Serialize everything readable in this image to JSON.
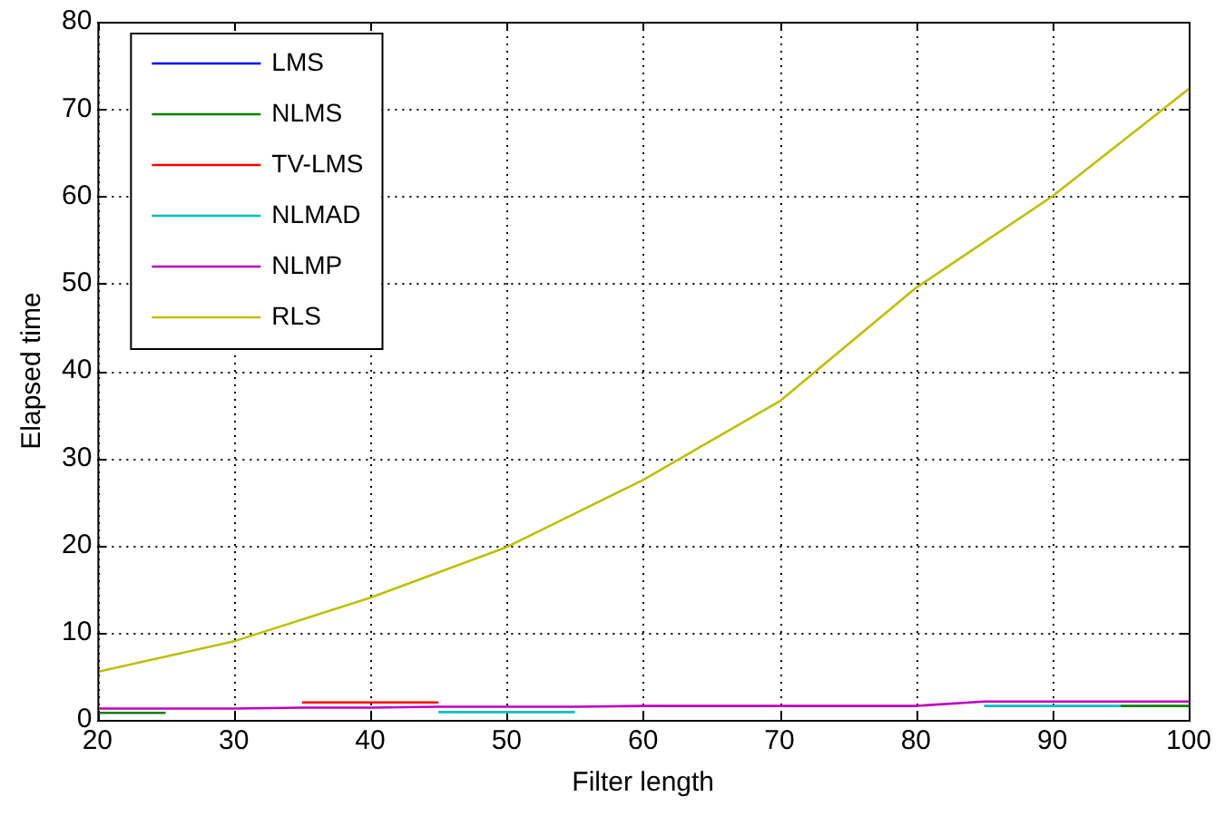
{
  "chart_data": {
    "type": "line",
    "xlabel": "Filter length",
    "ylabel": "Elapsed time",
    "x": [
      20,
      25,
      30,
      35,
      40,
      45,
      50,
      55,
      60,
      65,
      70,
      75,
      80,
      85,
      90,
      95,
      100
    ],
    "series": [
      {
        "name": "LMS",
        "color": "#0000ff",
        "values": [
          null,
          null,
          null,
          null,
          null,
          null,
          null,
          null,
          null,
          null,
          null,
          null,
          null,
          null,
          null,
          null,
          null
        ]
      },
      {
        "name": "NLMS",
        "color": "#008000",
        "values": [
          0.8,
          0.8,
          null,
          null,
          null,
          null,
          null,
          null,
          null,
          null,
          null,
          null,
          null,
          null,
          null,
          1.6,
          1.6
        ]
      },
      {
        "name": "TV-LMS",
        "color": "#ff0000",
        "values": [
          null,
          null,
          null,
          2.0,
          2.0,
          2.0,
          null,
          null,
          null,
          null,
          null,
          null,
          null,
          null,
          null,
          null,
          null
        ]
      },
      {
        "name": "NLMAD",
        "color": "#00bfbf",
        "values": [
          null,
          null,
          null,
          null,
          null,
          0.9,
          0.9,
          0.9,
          null,
          null,
          null,
          null,
          null,
          1.6,
          1.6,
          1.6,
          null
        ]
      },
      {
        "name": "NLMP",
        "color": "#bf00bf",
        "values": [
          1.3,
          1.3,
          1.3,
          1.4,
          1.4,
          1.5,
          1.5,
          1.5,
          1.6,
          1.6,
          1.6,
          1.6,
          1.6,
          2.1,
          2.1,
          2.1,
          2.1
        ]
      },
      {
        "name": "RLS",
        "color": "#bfbf00",
        "x": [
          20,
          30,
          40,
          50,
          60,
          70,
          80,
          90,
          100
        ],
        "values": [
          5.5,
          9,
          14,
          19.8,
          27.5,
          36.5,
          49.5,
          60,
          72.3
        ]
      }
    ],
    "xlim": [
      20,
      100
    ],
    "xticks": [
      20,
      30,
      40,
      50,
      60,
      70,
      80,
      90,
      100
    ],
    "ylim": [
      0,
      80
    ],
    "yticks": [
      0,
      10,
      20,
      30,
      40,
      50,
      60,
      70,
      80
    ],
    "grid": true,
    "legend": "top left",
    "line_style": "solid",
    "marker": "none"
  }
}
